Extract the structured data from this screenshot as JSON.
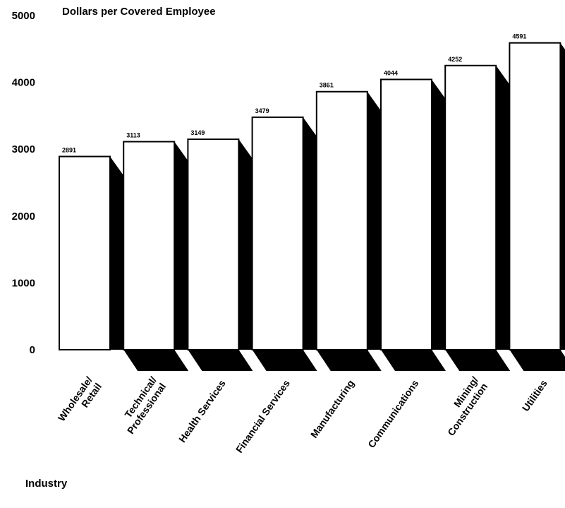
{
  "chart_data": {
    "type": "bar",
    "title": "Dollars per Covered Employee",
    "xlabel": "Industry",
    "ylabel": "",
    "ylim": [
      0,
      5000
    ],
    "yticks": [
      0,
      1000,
      2000,
      3000,
      4000,
      5000
    ],
    "grid": false,
    "legend": "none",
    "categories": [
      "Wholesale/ Retail",
      "Technical/ Professional",
      "Health Services",
      "Financial Services",
      "Manufacturing",
      "Communications",
      "Mining/ Construction",
      "Utilities"
    ],
    "category_lines": [
      [
        "Wholesale/",
        "Retail"
      ],
      [
        "Technical/",
        "Professional"
      ],
      [
        "Health Services"
      ],
      [
        "Financial Services"
      ],
      [
        "Manufacturing"
      ],
      [
        "Communications"
      ],
      [
        "Mining/",
        "Construction"
      ],
      [
        "Utilities"
      ]
    ],
    "values": [
      2891,
      3113,
      3149,
      3479,
      3861,
      4044,
      4252,
      4591
    ],
    "value_labels": [
      "2891",
      "3113",
      "3149",
      "3479",
      "3861",
      "4044",
      "4252",
      "4591"
    ],
    "bar_color": "#ffffff",
    "shadow_color": "#000000"
  }
}
